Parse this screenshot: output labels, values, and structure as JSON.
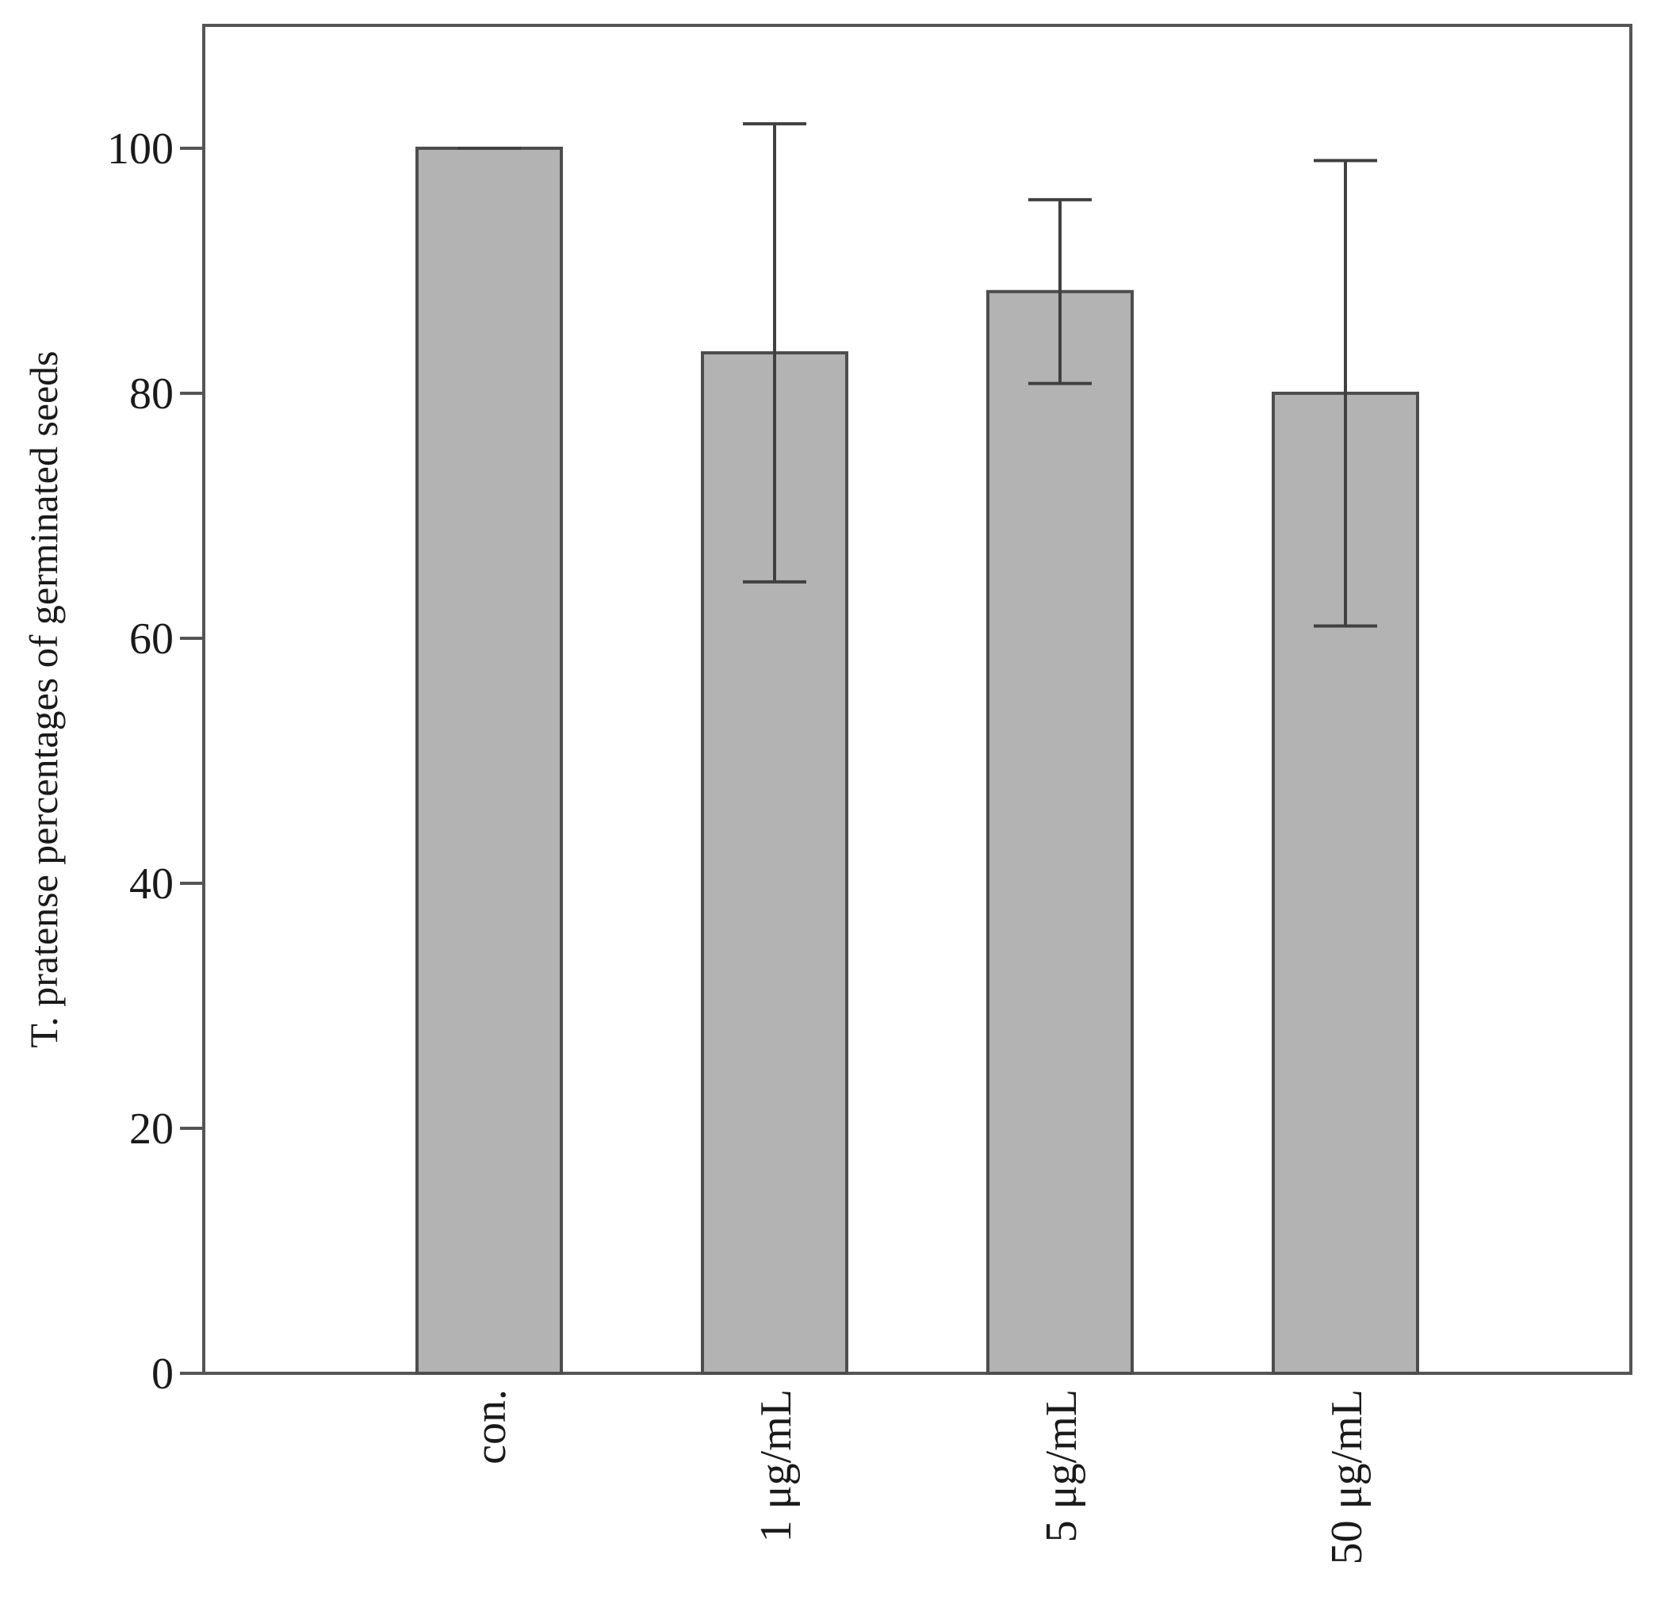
{
  "chart_data": {
    "type": "bar",
    "title": "",
    "xlabel": "",
    "ylabel": "T. pratense percentages of germinated seeds",
    "categories": [
      "con.",
      "1 μg/mL",
      "5 μg/mL",
      "50 μg/mL"
    ],
    "values": [
      100,
      83.3,
      88.3,
      80
    ],
    "error_bars": [
      {
        "low": 100,
        "high": 100
      },
      {
        "low": 64.6,
        "high": 102
      },
      {
        "low": 80.8,
        "high": 95.8
      },
      {
        "low": 61,
        "high": 99
      }
    ],
    "ylim": [
      0,
      110
    ],
    "yticks": [
      0,
      20,
      40,
      60,
      80,
      100
    ],
    "grid": false,
    "colors": {
      "bar_fill": "#b3b3b3",
      "bar_stroke": "#4d4d4d",
      "axis": "#555555",
      "error_bar": "#404040"
    }
  }
}
